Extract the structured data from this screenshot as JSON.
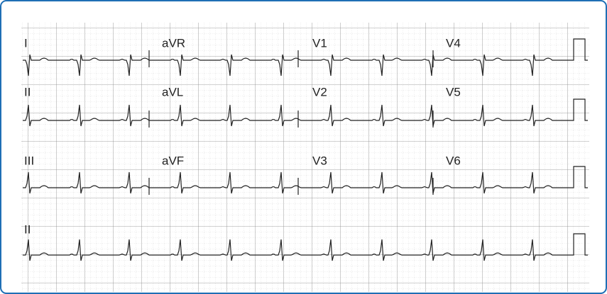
{
  "ecg": {
    "rows": [
      [
        "I",
        "aVR",
        "V1",
        "V4"
      ],
      [
        "II",
        "aVL",
        "V2",
        "V5"
      ],
      [
        "III",
        "aVF",
        "V3",
        "V6"
      ],
      [
        "II"
      ]
    ]
  }
}
